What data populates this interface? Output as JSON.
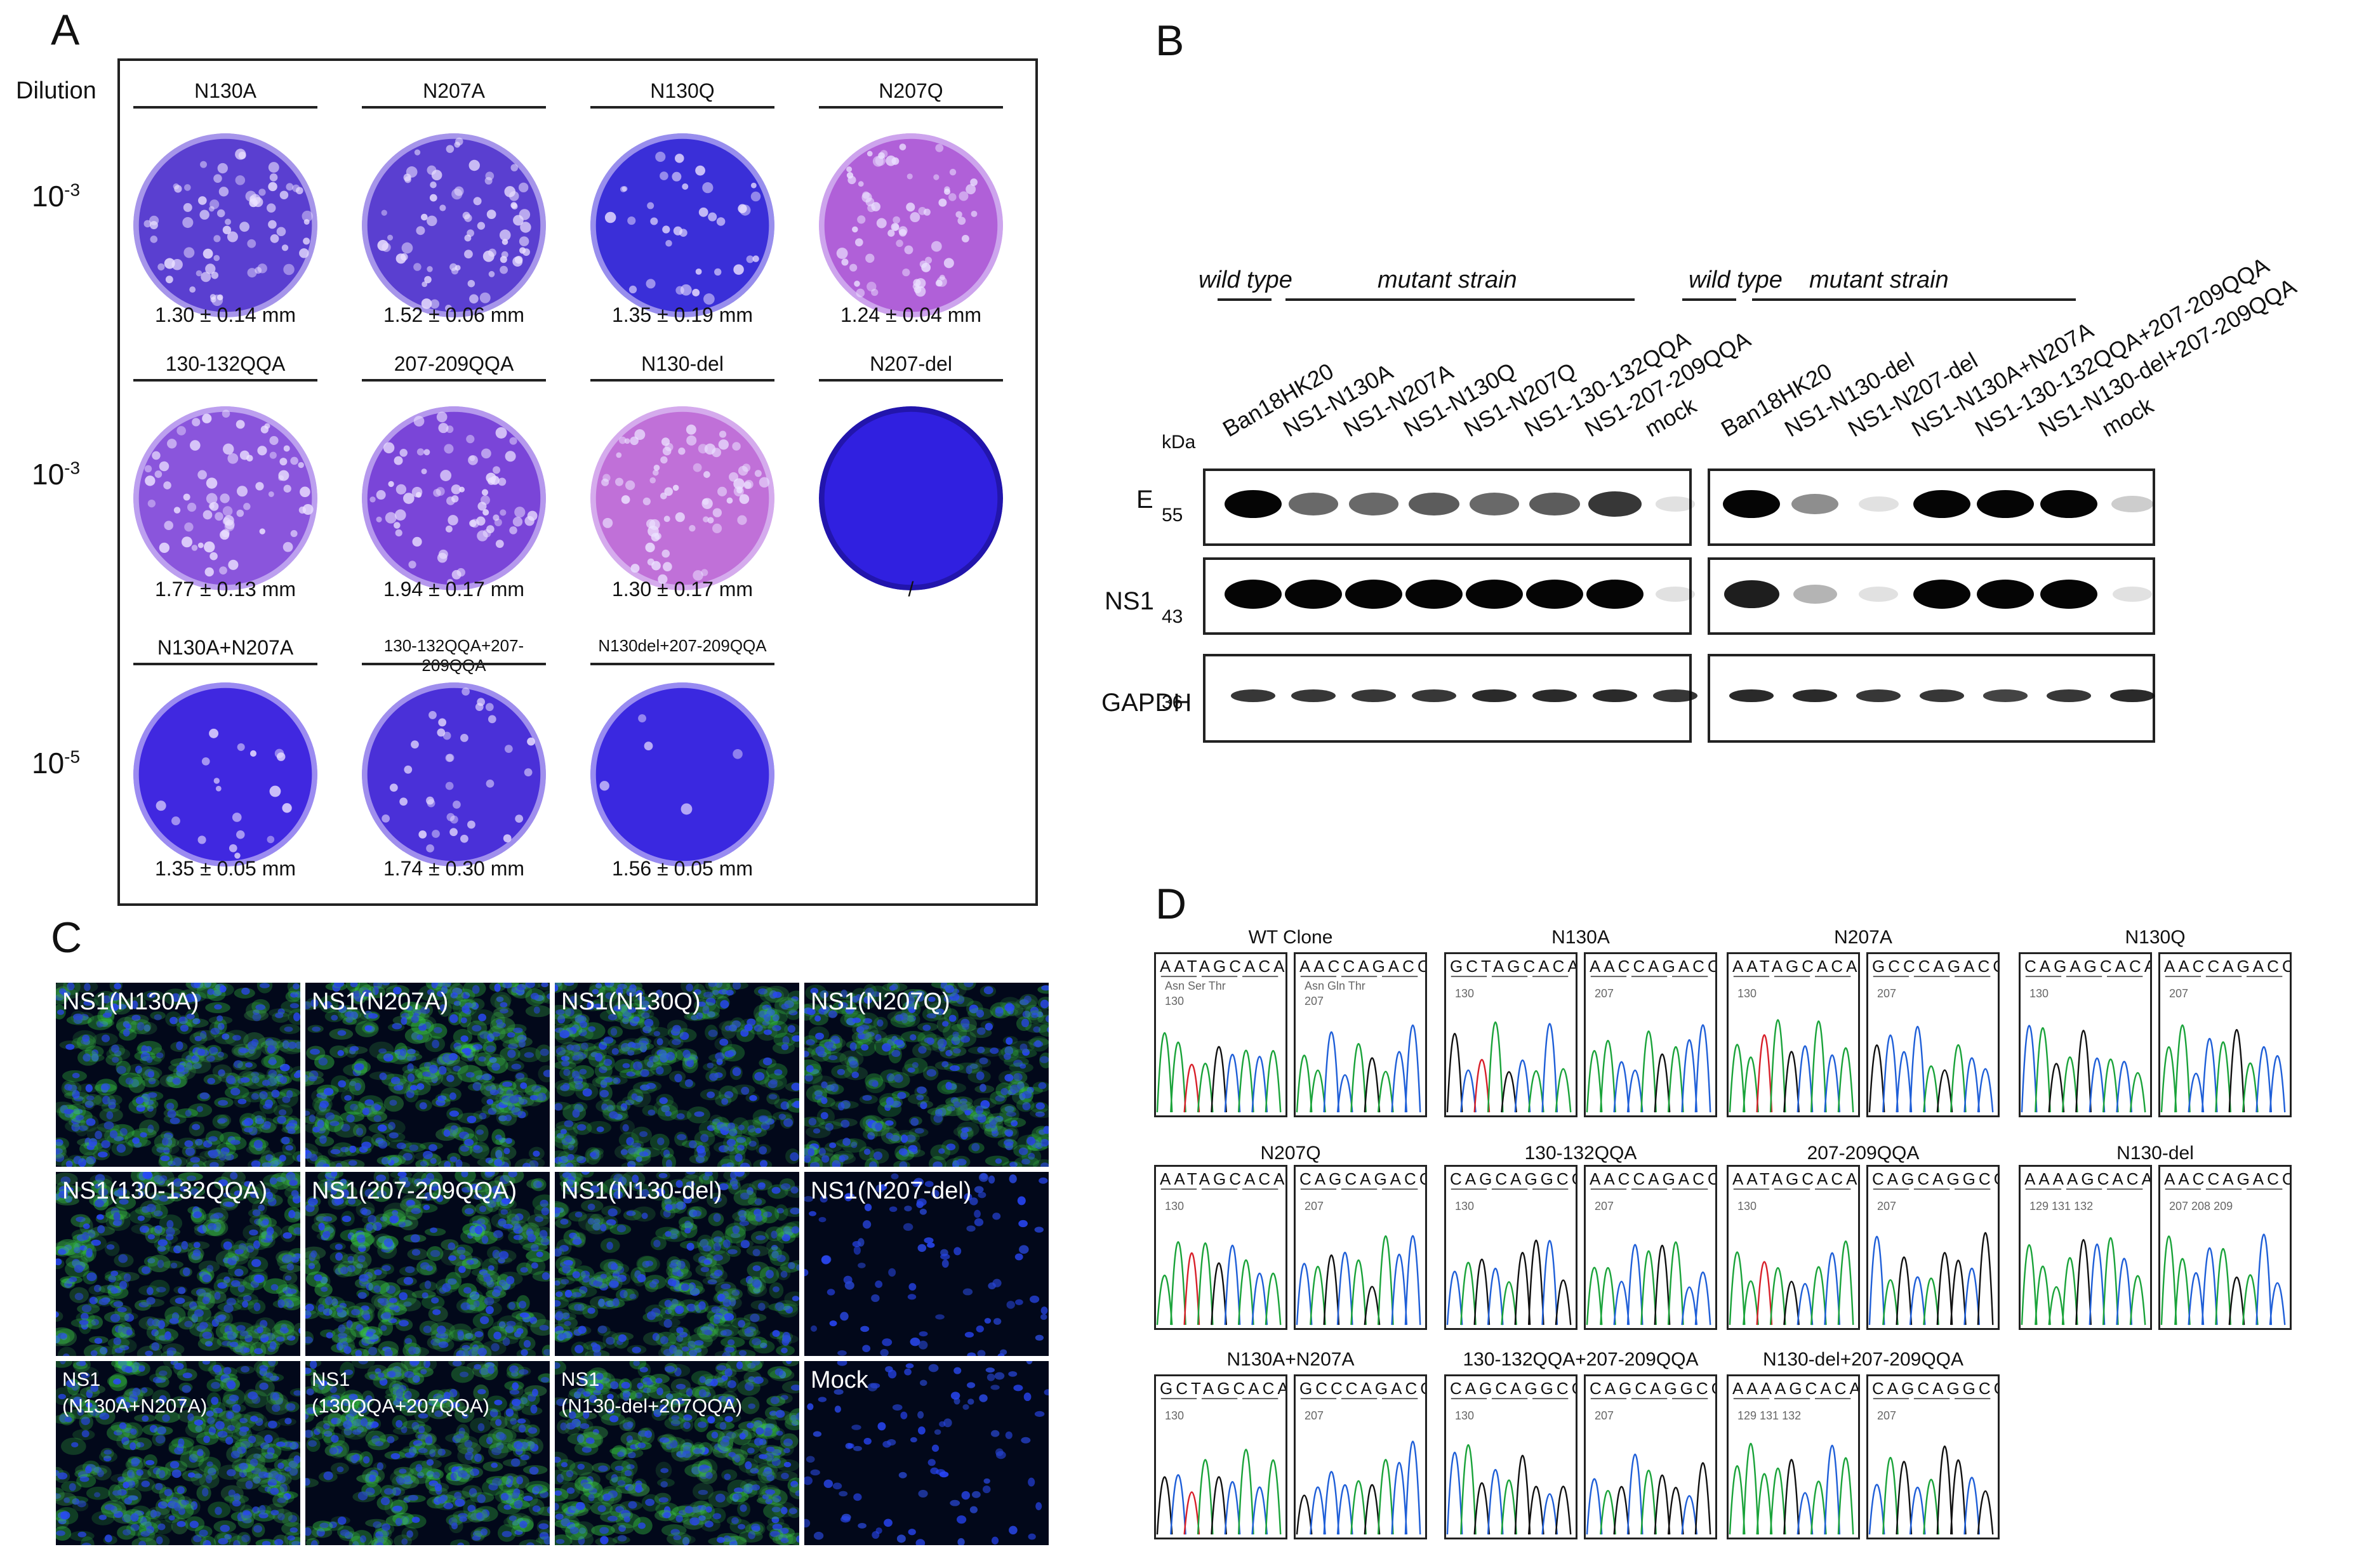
{
  "panel_letters": {
    "a": "A",
    "b": "B",
    "c": "C",
    "d": "D"
  },
  "panel_a": {
    "dilution_header": "Dilution",
    "dilutions": [
      {
        "base": "10",
        "exp": "-3"
      },
      {
        "base": "10",
        "exp": "-3"
      },
      {
        "base": "10",
        "exp": "-5"
      }
    ],
    "plates": [
      {
        "name": "N130A",
        "size": "1.30 ± 0.14 mm",
        "color": "#5a3fd0",
        "plaques": "many"
      },
      {
        "name": "N207A",
        "size": "1.52 ± 0.06 mm",
        "color": "#5a3fd0",
        "plaques": "many"
      },
      {
        "name": "N130Q",
        "size": "1.35 ± 0.19 mm",
        "color": "#3a2fd8",
        "plaques": "some"
      },
      {
        "name": "N207Q",
        "size": "1.24 ± 0.04 mm",
        "color": "#b060d8",
        "plaques": "many"
      },
      {
        "name": "130-132QQA",
        "size": "1.77 ± 0.13 mm",
        "color": "#8a55dc",
        "plaques": "many"
      },
      {
        "name": "207-209QQA",
        "size": "1.94 ± 0.17 mm",
        "color": "#7a45d8",
        "plaques": "many"
      },
      {
        "name": "N130-del",
        "size": "1.30 ± 0.17 mm",
        "color": "#c070d8",
        "plaques": "many"
      },
      {
        "name": "N207-del",
        "size": "/",
        "color": "#3020e0",
        "plaques": "none"
      },
      {
        "name": "N130A+N207A",
        "size": "1.35 ± 0.05 mm",
        "color": "#4028e0",
        "plaques": "few"
      },
      {
        "name": "130-132QQA+207-209QQA",
        "size": "1.74 ± 0.30 mm",
        "color": "#4a30d8",
        "plaques": "some"
      },
      {
        "name": "N130del+207-209QQA",
        "size": "1.56 ± 0.05 mm",
        "color": "#3a28e0",
        "plaques": "rare"
      }
    ]
  },
  "panel_b": {
    "kda_label": "kDa",
    "left_blot": {
      "wild_type": "wild type",
      "mutant": "mutant strain",
      "lanes": [
        "Ban18HK20",
        "NS1-N130A",
        "NS1-N207A",
        "NS1-N130Q",
        "NS1-N207Q",
        "NS1-130-132QQA",
        "NS1-207-209QQA",
        "mock"
      ]
    },
    "right_blot": {
      "wild_type": "wild type",
      "mutant": "mutant strain",
      "lanes": [
        "Ban18HK20",
        "NS1-N130-del",
        "NS1-N207-del",
        "NS1-N130A+N207A",
        "NS1-130-132QQA+207-209QQA",
        "NS1-N130-del+207-209QQA",
        "mock"
      ]
    },
    "proteins": [
      {
        "name": "E",
        "mw": "55"
      },
      {
        "name": "NS1",
        "mw": "43"
      },
      {
        "name": "GAPDH",
        "mw": "36"
      }
    ],
    "band_intensity": {
      "E_left": [
        1.0,
        0.6,
        0.6,
        0.65,
        0.6,
        0.65,
        0.8,
        0.05
      ],
      "NS1_left": [
        1.0,
        1.0,
        1.0,
        1.0,
        1.0,
        1.0,
        1.0,
        0.05
      ],
      "GAPDH_left": [
        0.8,
        0.8,
        0.8,
        0.8,
        0.85,
        0.85,
        0.85,
        0.8
      ],
      "E_right": [
        1.0,
        0.45,
        0.1,
        1.0,
        1.0,
        1.0,
        0.2
      ],
      "NS1_right": [
        0.9,
        0.3,
        0.05,
        1.0,
        1.0,
        1.0,
        0.05
      ],
      "GAPDH_right": [
        0.85,
        0.85,
        0.8,
        0.8,
        0.75,
        0.8,
        0.85
      ]
    }
  },
  "panel_c": {
    "tiles": [
      {
        "label": "NS1(N130A)",
        "green": 0.55
      },
      {
        "label": "NS1(N207A)",
        "green": 0.75
      },
      {
        "label": "NS1(N130Q)",
        "green": 0.45
      },
      {
        "label": "NS1(N207Q)",
        "green": 0.5
      },
      {
        "label": "NS1(130-132QQA)",
        "green": 0.75
      },
      {
        "label": "NS1(207-209QQA)",
        "green": 0.8
      },
      {
        "label": "NS1(N130-del)",
        "green": 0.5
      },
      {
        "label": "NS1(N207-del)",
        "green": 0.0
      },
      {
        "label": "NS1\n(N130A+N207A)",
        "green": 0.7
      },
      {
        "label": "NS1\n(130QQA+207QQA)",
        "green": 0.8
      },
      {
        "label": "NS1\n(N130-del+207QQA)",
        "green": 0.75
      },
      {
        "label": "Mock",
        "green": 0.0
      }
    ]
  },
  "panel_d": {
    "clones": [
      {
        "title": "WT Clone",
        "seq1": "AATAGCACA",
        "pos1": "Asn  Ser  Thr",
        "num1": "130",
        "seq2": "AACCAGACC",
        "pos2": "Asn  Gln  Thr",
        "num2": "207"
      },
      {
        "title": "N130A",
        "seq1": "GCTAGCACA",
        "num1": "130",
        "seq2": "AACCAGACC",
        "num2": "207"
      },
      {
        "title": "N207A",
        "seq1": "AATAGCACA",
        "num1": "130",
        "seq2": "GCCCAGACC",
        "num2": "207"
      },
      {
        "title": "N130Q",
        "seq1": "CAGAGCACA",
        "num1": "130",
        "seq2": "AACCAGACC",
        "num2": "207"
      },
      {
        "title": "N207Q",
        "seq1": "AATAGCACA",
        "num1": "130",
        "seq2": "CAGCAGACC",
        "num2": "207"
      },
      {
        "title": "130-132QQA",
        "seq1": "CAGCAGGCG",
        "num1": "130",
        "seq2": "AACCAGACC",
        "num2": "207"
      },
      {
        "title": "207-209QQA",
        "seq1": "AATAGCACA",
        "num1": "130",
        "seq2": "CAGCAGGCG",
        "num2": "207"
      },
      {
        "title": "N130-del",
        "seq1": "AAAAGCACA",
        "num1": "129   131   132",
        "seq2": "AACCAGACC",
        "num2": "207   208   209"
      },
      {
        "title": "N130A+N207A",
        "seq1": "GCTAGCACA",
        "num1": "130",
        "seq2": "GCCCAGACC",
        "num2": "207"
      },
      {
        "title": "130-132QQA+207-209QQA",
        "seq1": "CAGCAGGCG",
        "num1": "130",
        "seq2": "CAGCAGGCG",
        "num2": "207"
      },
      {
        "title": "N130-del+207-209QQA",
        "seq1": "AAAAGCACA",
        "num1": "129   131   132",
        "seq2": "CAGCAGGCG",
        "num2": "207"
      }
    ]
  }
}
